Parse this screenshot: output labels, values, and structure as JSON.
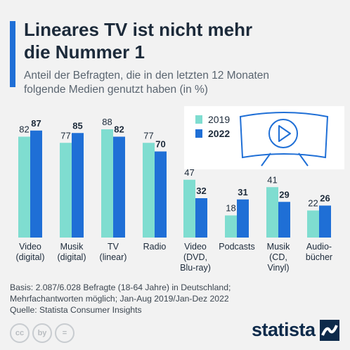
{
  "title_line1": "Lineares TV ist nicht mehr",
  "title_line2": "die Nummer 1",
  "subtitle_line1": "Anteil der Befragten, die in den letzten 12 Monaten",
  "subtitle_line2": "folgende Medien genutzt haben (in %)",
  "chart_data": {
    "type": "bar",
    "categories": [
      [
        "Video",
        "(digital)"
      ],
      [
        "Musik",
        "(digital)"
      ],
      [
        "TV",
        "(linear)"
      ],
      [
        "Radio"
      ],
      [
        "Video",
        "(DVD,",
        "Blu-ray)"
      ],
      [
        "Podcasts"
      ],
      [
        "Musik",
        "(CD,",
        "Vinyl)"
      ],
      [
        "Audio-",
        "bücher"
      ]
    ],
    "series": [
      {
        "name": "2019",
        "color": "#7fddd0",
        "values": [
          82,
          77,
          88,
          77,
          47,
          18,
          41,
          22
        ]
      },
      {
        "name": "2022",
        "color": "#1f6fd6",
        "values": [
          87,
          85,
          82,
          70,
          32,
          31,
          29,
          26
        ]
      }
    ],
    "ylim": [
      0,
      100
    ],
    "legend": "top-right",
    "grid": false
  },
  "footer_lines": [
    "Basis: 2.087/6.028 Befragte (18-64 Jahre) in Deutschland;",
    "Mehrfachantworten möglich; Jan-Aug 2019/Jan-Dez 2022",
    "Quelle: Statista Consumer Insights"
  ],
  "license_icons": [
    "cc",
    "by",
    "="
  ],
  "brand": "statista",
  "icons": {
    "tv": "tv-play-icon",
    "brand_mark": "statista-logo-icon"
  }
}
